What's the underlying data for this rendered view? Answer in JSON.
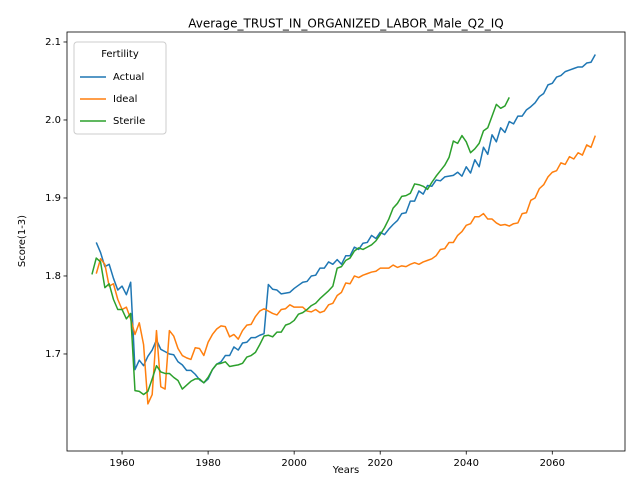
{
  "chart_data": {
    "type": "line",
    "title": "Average_TRUST_IN_ORGANIZED_LABOR_Male_Q2_IQ",
    "x_label": "Years",
    "y_label": "Score(1-3)",
    "legend_title": "Fertility",
    "legend_loc": "upper left",
    "grid": false,
    "xlim": [
      1947.2,
      2076.9
    ],
    "ylim": [
      1.5756,
      2.1128
    ],
    "xticks": [
      1960,
      1980,
      2000,
      2020,
      2040,
      2060
    ],
    "yticks": [
      1.7,
      1.8,
      1.9,
      {
        "value": 2,
        "label": "2.0"
      },
      2.1
    ],
    "x": [
      1953,
      1954,
      1955,
      1956,
      1957,
      1958,
      1959,
      1960,
      1961,
      1962,
      1963,
      1964,
      1965,
      1966,
      1967,
      1968,
      1969,
      1970,
      1971,
      1972,
      1973,
      1974,
      1975,
      1976,
      1977,
      1978,
      1979,
      1980,
      1981,
      1982,
      1983,
      1984,
      1985,
      1986,
      1987,
      1988,
      1989,
      1990,
      1991,
      1992,
      1993,
      1994,
      1995,
      1996,
      1997,
      1998,
      1999,
      2000,
      2001,
      2002,
      2003,
      2004,
      2005,
      2006,
      2007,
      2008,
      2009,
      2010,
      2011,
      2012,
      2013,
      2014,
      2015,
      2016,
      2017,
      2018,
      2019,
      2020,
      2021,
      2022,
      2023,
      2024,
      2025,
      2026,
      2027,
      2028,
      2029,
      2030,
      2031,
      2032,
      2033,
      2034,
      2035,
      2036,
      2037,
      2038,
      2039,
      2040,
      2041,
      2042,
      2043,
      2044,
      2045,
      2046,
      2047,
      2048,
      2049,
      2050,
      2051,
      2052,
      2053,
      2054,
      2055,
      2056,
      2057,
      2058,
      2059,
      2060,
      2061,
      2062,
      2063,
      2064,
      2065,
      2066,
      2067,
      2068,
      2069,
      2070
    ],
    "series": [
      {
        "name": "Actual",
        "color": "#1f77b4",
        "values": [
          null,
          1.843,
          1.83,
          1.812,
          1.815,
          1.797,
          1.782,
          1.787,
          1.776,
          1.792,
          1.68,
          1.692,
          1.685,
          1.697,
          1.705,
          1.718,
          1.706,
          1.703,
          1.7,
          1.699,
          1.69,
          1.686,
          1.679,
          1.679,
          1.674,
          1.667,
          1.663,
          1.668,
          1.68,
          1.687,
          1.69,
          1.698,
          1.698,
          1.709,
          1.705,
          1.714,
          1.715,
          1.721,
          1.721,
          1.724,
          1.726,
          1.789,
          1.783,
          1.782,
          1.777,
          1.778,
          1.779,
          1.784,
          1.788,
          1.792,
          1.793,
          1.8,
          1.801,
          1.81,
          1.81,
          1.818,
          1.815,
          1.821,
          1.815,
          1.826,
          1.826,
          1.837,
          1.834,
          1.842,
          1.843,
          1.852,
          1.848,
          1.856,
          1.853,
          1.86,
          1.866,
          1.871,
          1.88,
          1.881,
          1.896,
          1.896,
          1.909,
          1.905,
          1.916,
          1.915,
          1.923,
          1.922,
          1.927,
          1.928,
          1.929,
          1.933,
          1.928,
          1.94,
          1.932,
          1.949,
          1.94,
          1.965,
          1.956,
          1.981,
          1.972,
          1.99,
          1.984,
          1.998,
          1.995,
          2.005,
          2.005,
          2.013,
          2.017,
          2.022,
          2.03,
          2.034,
          2.045,
          2.047,
          2.055,
          2.057,
          2.062,
          2.064,
          2.066,
          2.068,
          2.068,
          2.073,
          2.074,
          2.084
        ]
      },
      {
        "name": "Ideal",
        "color": "#ff7f0e",
        "values": [
          null,
          1.803,
          1.822,
          1.815,
          1.787,
          1.79,
          1.77,
          1.757,
          1.76,
          1.745,
          1.725,
          1.74,
          1.712,
          1.636,
          1.648,
          1.73,
          1.658,
          1.655,
          1.73,
          1.723,
          1.707,
          1.698,
          1.695,
          1.693,
          1.708,
          1.707,
          1.698,
          1.715,
          1.725,
          1.732,
          1.736,
          1.735,
          1.722,
          1.725,
          1.719,
          1.73,
          1.737,
          1.738,
          1.748,
          1.755,
          1.758,
          1.755,
          1.752,
          1.75,
          1.757,
          1.758,
          1.763,
          1.76,
          1.76,
          1.76,
          1.755,
          1.754,
          1.757,
          1.753,
          1.755,
          1.763,
          1.765,
          1.775,
          1.779,
          1.791,
          1.79,
          1.8,
          1.798,
          1.801,
          1.803,
          1.805,
          1.806,
          1.81,
          1.81,
          1.81,
          1.814,
          1.811,
          1.813,
          1.812,
          1.815,
          1.817,
          1.815,
          1.818,
          1.82,
          1.822,
          1.826,
          1.834,
          1.835,
          1.843,
          1.843,
          1.852,
          1.857,
          1.865,
          1.867,
          1.876,
          1.876,
          1.88,
          1.873,
          1.873,
          1.868,
          1.865,
          1.866,
          1.864,
          1.867,
          1.868,
          1.88,
          1.881,
          1.897,
          1.9,
          1.912,
          1.917,
          1.927,
          1.933,
          1.935,
          1.945,
          1.943,
          1.953,
          1.95,
          1.958,
          1.955,
          1.968,
          1.965,
          1.98
        ]
      },
      {
        "name": "Sterile",
        "color": "#2ca02c",
        "values": [
          1.802,
          1.823,
          1.818,
          1.785,
          1.79,
          1.77,
          1.757,
          1.757,
          1.745,
          1.752,
          1.653,
          1.652,
          1.648,
          1.652,
          1.668,
          1.685,
          1.677,
          1.675,
          1.675,
          1.67,
          1.666,
          1.655,
          1.66,
          1.665,
          1.668,
          1.668,
          1.663,
          1.67,
          1.68,
          1.687,
          1.688,
          1.69,
          1.684,
          1.685,
          1.686,
          1.688,
          1.696,
          1.698,
          1.702,
          1.712,
          1.723,
          1.724,
          1.722,
          1.728,
          1.728,
          1.737,
          1.739,
          1.743,
          1.751,
          1.753,
          1.757,
          1.762,
          1.765,
          1.771,
          1.776,
          1.781,
          1.787,
          1.81,
          1.812,
          1.82,
          1.823,
          1.832,
          1.836,
          1.834,
          1.837,
          1.84,
          1.845,
          1.853,
          1.862,
          1.873,
          1.887,
          1.893,
          1.902,
          1.903,
          1.906,
          1.918,
          1.917,
          1.915,
          1.911,
          1.92,
          1.928,
          1.935,
          1.942,
          1.952,
          1.973,
          1.97,
          1.98,
          1.972,
          1.958,
          1.963,
          1.97,
          1.986,
          1.99,
          2.005,
          2.02,
          2.015,
          2.018,
          2.029,
          null,
          null,
          null,
          null,
          null,
          null,
          null,
          null,
          null,
          null,
          null,
          null,
          null,
          null,
          null,
          null,
          null,
          null,
          null,
          null
        ]
      }
    ]
  }
}
